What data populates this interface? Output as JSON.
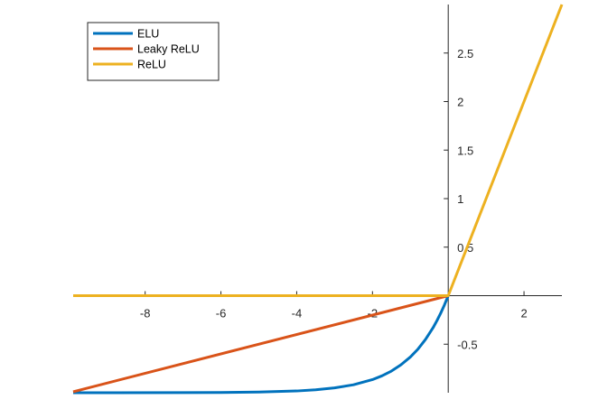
{
  "chart_data": {
    "type": "line",
    "title": "",
    "xlabel": "",
    "ylabel": "",
    "xlim": [
      -9.9,
      3.0
    ],
    "ylim": [
      -1.0,
      3.0
    ],
    "grid": false,
    "axis_location": "origin",
    "legend": {
      "position": "top-left"
    },
    "x_ticks": [
      -8,
      -6,
      -4,
      -2,
      2
    ],
    "x_tick_labels": [
      "-8",
      "-6",
      "-4",
      "-2",
      "2"
    ],
    "y_ticks": [
      -0.5,
      0.5,
      1,
      1.5,
      2,
      2.5
    ],
    "y_tick_labels": [
      "-0.5",
      "0.5",
      "1",
      "1.5",
      "2",
      "2.5"
    ],
    "series": [
      {
        "name": "ELU",
        "color": "#0072BD",
        "x": [
          -9.9,
          -7.0,
          -6.0,
          -5.0,
          -4.0,
          -3.5,
          -3.0,
          -2.5,
          -2.0,
          -1.75,
          -1.5,
          -1.25,
          -1.0,
          -0.8,
          -0.6,
          -0.4,
          -0.3,
          -0.2,
          -0.1,
          0.0
        ],
        "y": [
          -1.0,
          -0.999,
          -0.998,
          -0.993,
          -0.982,
          -0.97,
          -0.95,
          -0.918,
          -0.865,
          -0.826,
          -0.777,
          -0.713,
          -0.632,
          -0.551,
          -0.451,
          -0.33,
          -0.259,
          -0.181,
          -0.095,
          0.0
        ]
      },
      {
        "name": "Leaky ReLU",
        "color": "#D95319",
        "x": [
          -9.9,
          0.0
        ],
        "y": [
          -0.99,
          0.0
        ]
      },
      {
        "name": "ReLU",
        "color": "#EDB120",
        "x": [
          -9.9,
          0.0,
          3.0
        ],
        "y": [
          0.0,
          0.0,
          3.0
        ]
      }
    ]
  }
}
